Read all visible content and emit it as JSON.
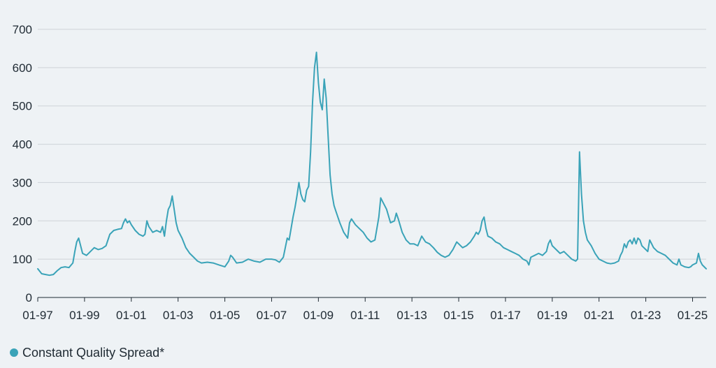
{
  "chart_data": {
    "type": "line",
    "title": "",
    "xlabel": "",
    "ylabel": "",
    "ylim": [
      0,
      700
    ],
    "yticks": [
      0,
      100,
      200,
      300,
      400,
      500,
      600,
      700
    ],
    "xticks": [
      "01-97",
      "01-99",
      "01-01",
      "01-03",
      "01-05",
      "01-07",
      "01-09",
      "01-11",
      "01-13",
      "01-15",
      "01-17",
      "01-19",
      "01-21",
      "01-23",
      "01-25"
    ],
    "x_range": [
      "01-97",
      "08-25"
    ],
    "grid": "horizontal",
    "legend_position": "bottom-left",
    "series": [
      {
        "name": "Constant Quality Spread*",
        "color": "#3aa3b8",
        "points": [
          [
            "01-97",
            75
          ],
          [
            "03-97",
            62
          ],
          [
            "05-97",
            60
          ],
          [
            "07-97",
            58
          ],
          [
            "09-97",
            60
          ],
          [
            "11-97",
            70
          ],
          [
            "01-98",
            78
          ],
          [
            "03-98",
            80
          ],
          [
            "05-98",
            78
          ],
          [
            "07-98",
            90
          ],
          [
            "08-98",
            120
          ],
          [
            "09-98",
            145
          ],
          [
            "10-98",
            155
          ],
          [
            "11-98",
            135
          ],
          [
            "12-98",
            115
          ],
          [
            "02-99",
            110
          ],
          [
            "04-99",
            120
          ],
          [
            "06-99",
            130
          ],
          [
            "08-99",
            125
          ],
          [
            "10-99",
            128
          ],
          [
            "12-99",
            135
          ],
          [
            "02-00",
            165
          ],
          [
            "04-00",
            175
          ],
          [
            "06-00",
            178
          ],
          [
            "08-00",
            180
          ],
          [
            "09-00",
            195
          ],
          [
            "10-00",
            205
          ],
          [
            "11-00",
            195
          ],
          [
            "12-00",
            200
          ],
          [
            "01-01",
            190
          ],
          [
            "03-01",
            175
          ],
          [
            "05-01",
            165
          ],
          [
            "07-01",
            160
          ],
          [
            "08-01",
            165
          ],
          [
            "09-01",
            200
          ],
          [
            "10-01",
            185
          ],
          [
            "12-01",
            170
          ],
          [
            "02-02",
            175
          ],
          [
            "04-02",
            170
          ],
          [
            "05-02",
            185
          ],
          [
            "06-02",
            160
          ],
          [
            "07-02",
            200
          ],
          [
            "08-02",
            230
          ],
          [
            "09-02",
            240
          ],
          [
            "10-02",
            265
          ],
          [
            "11-02",
            230
          ],
          [
            "12-02",
            195
          ],
          [
            "01-03",
            175
          ],
          [
            "03-03",
            155
          ],
          [
            "05-03",
            130
          ],
          [
            "07-03",
            115
          ],
          [
            "09-03",
            105
          ],
          [
            "11-03",
            95
          ],
          [
            "01-04",
            90
          ],
          [
            "04-04",
            92
          ],
          [
            "07-04",
            90
          ],
          [
            "10-04",
            85
          ],
          [
            "01-05",
            80
          ],
          [
            "03-05",
            95
          ],
          [
            "04-05",
            110
          ],
          [
            "05-05",
            105
          ],
          [
            "07-05",
            90
          ],
          [
            "10-05",
            92
          ],
          [
            "01-06",
            100
          ],
          [
            "04-06",
            95
          ],
          [
            "07-06",
            92
          ],
          [
            "10-06",
            100
          ],
          [
            "01-07",
            100
          ],
          [
            "03-07",
            98
          ],
          [
            "05-07",
            92
          ],
          [
            "07-07",
            105
          ],
          [
            "08-07",
            130
          ],
          [
            "09-07",
            155
          ],
          [
            "10-07",
            150
          ],
          [
            "11-07",
            180
          ],
          [
            "12-07",
            210
          ],
          [
            "01-08",
            235
          ],
          [
            "02-08",
            265
          ],
          [
            "03-08",
            300
          ],
          [
            "04-08",
            270
          ],
          [
            "05-08",
            255
          ],
          [
            "06-08",
            250
          ],
          [
            "07-08",
            280
          ],
          [
            "08-08",
            290
          ],
          [
            "09-08",
            380
          ],
          [
            "10-08",
            510
          ],
          [
            "11-08",
            600
          ],
          [
            "12-08",
            640
          ],
          [
            "01-09",
            560
          ],
          [
            "02-09",
            510
          ],
          [
            "03-09",
            490
          ],
          [
            "04-09",
            570
          ],
          [
            "05-09",
            520
          ],
          [
            "06-09",
            420
          ],
          [
            "07-09",
            320
          ],
          [
            "08-09",
            270
          ],
          [
            "09-09",
            240
          ],
          [
            "10-09",
            225
          ],
          [
            "11-09",
            210
          ],
          [
            "12-09",
            195
          ],
          [
            "02-10",
            170
          ],
          [
            "04-10",
            155
          ],
          [
            "05-10",
            195
          ],
          [
            "06-10",
            205
          ],
          [
            "08-10",
            190
          ],
          [
            "10-10",
            180
          ],
          [
            "12-10",
            170
          ],
          [
            "02-11",
            155
          ],
          [
            "04-11",
            145
          ],
          [
            "06-11",
            150
          ],
          [
            "08-11",
            210
          ],
          [
            "09-11",
            260
          ],
          [
            "10-11",
            250
          ],
          [
            "11-11",
            240
          ],
          [
            "12-11",
            230
          ],
          [
            "02-12",
            195
          ],
          [
            "04-12",
            200
          ],
          [
            "05-12",
            220
          ],
          [
            "06-12",
            205
          ],
          [
            "08-12",
            170
          ],
          [
            "10-12",
            150
          ],
          [
            "12-12",
            140
          ],
          [
            "02-13",
            140
          ],
          [
            "04-13",
            135
          ],
          [
            "06-13",
            160
          ],
          [
            "08-13",
            145
          ],
          [
            "10-13",
            140
          ],
          [
            "12-13",
            130
          ],
          [
            "02-14",
            118
          ],
          [
            "04-14",
            110
          ],
          [
            "06-14",
            105
          ],
          [
            "08-14",
            110
          ],
          [
            "10-14",
            125
          ],
          [
            "12-14",
            145
          ],
          [
            "01-15",
            140
          ],
          [
            "03-15",
            130
          ],
          [
            "05-15",
            135
          ],
          [
            "07-15",
            145
          ],
          [
            "09-15",
            160
          ],
          [
            "10-15",
            170
          ],
          [
            "11-15",
            165
          ],
          [
            "12-15",
            175
          ],
          [
            "01-16",
            200
          ],
          [
            "02-16",
            210
          ],
          [
            "03-16",
            180
          ],
          [
            "04-16",
            160
          ],
          [
            "06-16",
            155
          ],
          [
            "08-16",
            145
          ],
          [
            "10-16",
            140
          ],
          [
            "12-16",
            130
          ],
          [
            "02-17",
            125
          ],
          [
            "04-17",
            120
          ],
          [
            "06-17",
            115
          ],
          [
            "08-17",
            110
          ],
          [
            "10-17",
            100
          ],
          [
            "12-17",
            95
          ],
          [
            "01-18",
            85
          ],
          [
            "02-18",
            105
          ],
          [
            "04-18",
            110
          ],
          [
            "06-18",
            115
          ],
          [
            "08-18",
            110
          ],
          [
            "10-18",
            120
          ],
          [
            "11-18",
            140
          ],
          [
            "12-18",
            150
          ],
          [
            "01-19",
            135
          ],
          [
            "03-19",
            125
          ],
          [
            "05-19",
            115
          ],
          [
            "07-19",
            120
          ],
          [
            "09-19",
            110
          ],
          [
            "11-19",
            100
          ],
          [
            "01-20",
            95
          ],
          [
            "02-20",
            100
          ],
          [
            "03-20",
            380
          ],
          [
            "04-20",
            270
          ],
          [
            "05-20",
            200
          ],
          [
            "06-20",
            170
          ],
          [
            "07-20",
            150
          ],
          [
            "09-20",
            135
          ],
          [
            "11-20",
            115
          ],
          [
            "01-21",
            100
          ],
          [
            "03-21",
            95
          ],
          [
            "05-21",
            90
          ],
          [
            "07-21",
            88
          ],
          [
            "09-21",
            90
          ],
          [
            "11-21",
            95
          ],
          [
            "12-21",
            110
          ],
          [
            "01-22",
            120
          ],
          [
            "02-22",
            140
          ],
          [
            "03-22",
            130
          ],
          [
            "04-22",
            145
          ],
          [
            "05-22",
            150
          ],
          [
            "06-22",
            140
          ],
          [
            "07-22",
            155
          ],
          [
            "08-22",
            140
          ],
          [
            "09-22",
            155
          ],
          [
            "10-22",
            150
          ],
          [
            "11-22",
            135
          ],
          [
            "12-22",
            130
          ],
          [
            "01-23",
            125
          ],
          [
            "02-23",
            120
          ],
          [
            "03-23",
            150
          ],
          [
            "04-23",
            140
          ],
          [
            "05-23",
            130
          ],
          [
            "07-23",
            120
          ],
          [
            "09-23",
            115
          ],
          [
            "11-23",
            110
          ],
          [
            "01-24",
            100
          ],
          [
            "03-24",
            90
          ],
          [
            "05-24",
            85
          ],
          [
            "06-24",
            100
          ],
          [
            "07-24",
            85
          ],
          [
            "09-24",
            80
          ],
          [
            "11-24",
            78
          ],
          [
            "12-24",
            80
          ],
          [
            "01-25",
            85
          ],
          [
            "03-25",
            90
          ],
          [
            "04-25",
            115
          ],
          [
            "05-25",
            95
          ],
          [
            "06-25",
            85
          ],
          [
            "07-25",
            80
          ],
          [
            "08-25",
            75
          ]
        ]
      }
    ]
  }
}
